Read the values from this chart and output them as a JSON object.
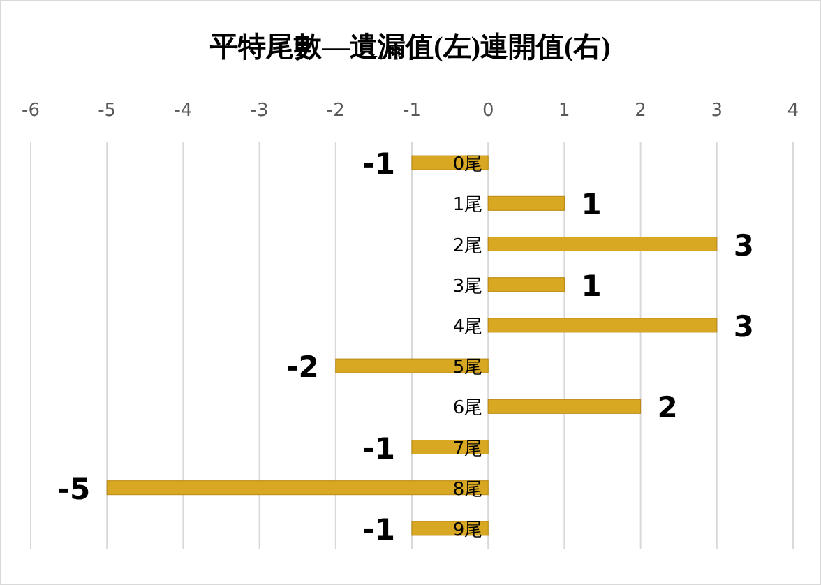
{
  "chart_data": {
    "type": "bar",
    "orientation": "horizontal",
    "title": "平特尾數—遺漏值(左)連開值(右)",
    "categories": [
      "0尾",
      "1尾",
      "2尾",
      "3尾",
      "4尾",
      "5尾",
      "6尾",
      "7尾",
      "8尾",
      "9尾"
    ],
    "values": [
      -1,
      1,
      3,
      1,
      3,
      -2,
      2,
      -1,
      -5,
      -1
    ],
    "color": "#d9a823",
    "xlim": [
      -6,
      4
    ],
    "xticks": [
      -6,
      -5,
      -4,
      -3,
      -2,
      -1,
      0,
      1,
      2,
      3,
      4
    ],
    "grid": "x",
    "data_labels": true
  }
}
